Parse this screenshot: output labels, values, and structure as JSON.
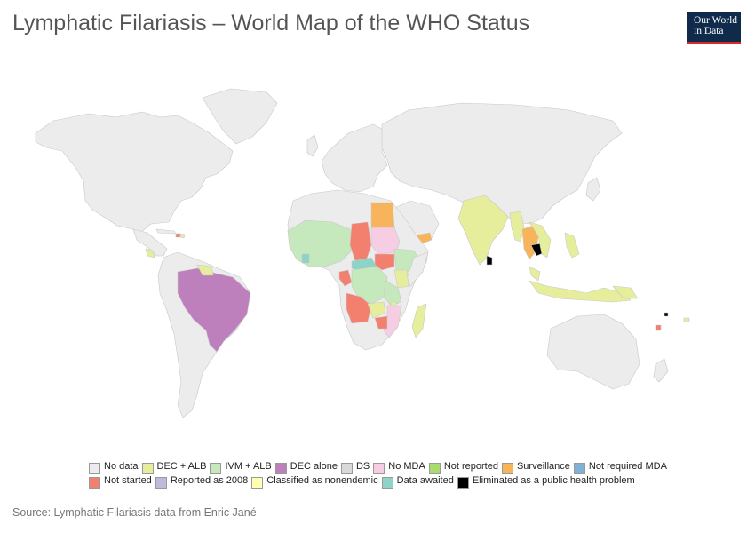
{
  "header": {
    "title": "Lymphatic Filariasis – World Map of the WHO Status",
    "logo_lines": [
      "Our World",
      "in Data"
    ]
  },
  "legend": {
    "rows": [
      [
        {
          "label": "No data",
          "color": "#ececec"
        },
        {
          "label": "DEC + ALB",
          "color": "#e6ee9b"
        },
        {
          "label": "IVM + ALB",
          "color": "#c5e8bd"
        },
        {
          "label": "DEC alone",
          "color": "#be7fbd"
        },
        {
          "label": "DS",
          "color": "#d9d9d9"
        },
        {
          "label": "No MDA",
          "color": "#f7cde4"
        },
        {
          "label": "Not reported",
          "color": "#a9dc6c"
        },
        {
          "label": "Surveillance",
          "color": "#f8b45b"
        },
        {
          "label": "Not required MDA",
          "color": "#7fb2d5"
        }
      ],
      [
        {
          "label": "Not started",
          "color": "#f3806f"
        },
        {
          "label": "Reported as 2008",
          "color": "#bebada"
        },
        {
          "label": "Classified as nonendemic",
          "color": "#ffffb3"
        },
        {
          "label": "Data awaited",
          "color": "#8dd3c7"
        },
        {
          "label": "Eliminated as a public health problem",
          "color": "#000000"
        }
      ]
    ]
  },
  "footer": {
    "source": "Source: Lymphatic Filariasis data from Enric Jané"
  }
}
